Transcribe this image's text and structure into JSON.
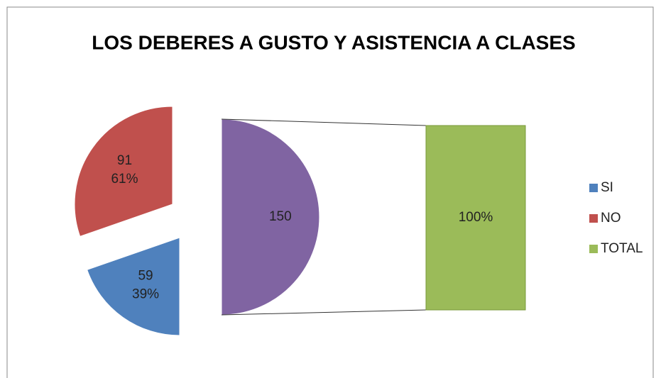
{
  "chart_data": {
    "type": "bar-of-pie",
    "title": "LOS DEBERES A GUSTO Y ASISTENCIA A CLASES",
    "categories": [
      "SI",
      "NO",
      "TOTAL"
    ],
    "values": [
      59,
      91,
      150
    ],
    "percents": [
      39,
      61,
      100
    ],
    "percent_labels": [
      "39%",
      "61%",
      "100%"
    ],
    "colors": [
      "#4f81bd",
      "#c0504d",
      "#8064a2"
    ],
    "bar_color": "#9bbb59",
    "legend": "right"
  }
}
